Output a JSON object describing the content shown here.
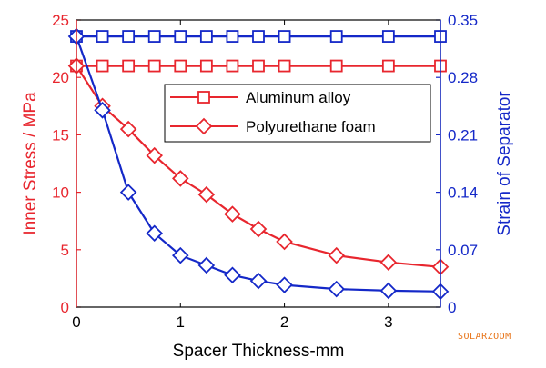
{
  "chart_data": {
    "type": "line",
    "xlabel": "Spacer Thickness-mm",
    "ylabel_left": "Inner Stress / MPa",
    "ylabel_right": "Strain of Separator",
    "xlim": [
      0,
      3.5
    ],
    "ylim_left": [
      0,
      25
    ],
    "ylim_right": [
      0,
      0.35
    ],
    "x_ticks": [
      "0",
      "1",
      "2",
      "3"
    ],
    "y_left_ticks": [
      "0",
      "5",
      "10",
      "15",
      "20",
      "25"
    ],
    "y_right_ticks": [
      "0",
      "0.07",
      "0.14",
      "0.21",
      "0.28",
      "0.35"
    ],
    "grid": false,
    "legend_position": "top-right",
    "colors": {
      "left_axis": "#e8262e",
      "right_axis": "#1428c8"
    },
    "legend": [
      {
        "label": "Aluminum alloy",
        "marker": "square"
      },
      {
        "label": "Polyurethane foam",
        "marker": "diamond"
      }
    ],
    "series": [
      {
        "name": "Aluminum alloy",
        "color": "#e8262e",
        "marker": "square",
        "axis": "left",
        "x": [
          0,
          0.25,
          0.5,
          0.75,
          1.0,
          1.25,
          1.5,
          1.75,
          2.0,
          2.5,
          3.0,
          3.5
        ],
        "y": [
          21,
          21,
          21,
          21,
          21,
          21,
          21,
          21,
          21,
          21,
          21,
          21
        ]
      },
      {
        "name": "Polyurethane foam",
        "color": "#e8262e",
        "marker": "diamond",
        "axis": "left",
        "x": [
          0,
          0.25,
          0.5,
          0.75,
          1.0,
          1.25,
          1.5,
          1.75,
          2.0,
          2.5,
          3.0,
          3.5
        ],
        "y": [
          21.0,
          17.5,
          15.5,
          13.2,
          11.2,
          9.8,
          8.1,
          6.8,
          5.7,
          4.5,
          3.9,
          3.5
        ]
      },
      {
        "name": "Aluminum alloy",
        "color": "#1428c8",
        "marker": "square",
        "axis": "right",
        "x": [
          0,
          0.25,
          0.5,
          0.75,
          1.0,
          1.25,
          1.5,
          1.75,
          2.0,
          2.5,
          3.0,
          3.5
        ],
        "y": [
          0.33,
          0.33,
          0.33,
          0.33,
          0.33,
          0.33,
          0.33,
          0.33,
          0.33,
          0.33,
          0.33,
          0.33
        ]
      },
      {
        "name": "Polyurethane foam",
        "color": "#1428c8",
        "marker": "diamond",
        "axis": "right",
        "x": [
          0,
          0.25,
          0.5,
          0.75,
          1.0,
          1.25,
          1.5,
          1.75,
          2.0,
          2.5,
          3.0,
          3.5
        ],
        "y": [
          0.33,
          0.24,
          0.14,
          0.09,
          0.063,
          0.051,
          0.039,
          0.032,
          0.027,
          0.022,
          0.02,
          0.019
        ]
      }
    ]
  },
  "watermark": "SOLARZOOM"
}
